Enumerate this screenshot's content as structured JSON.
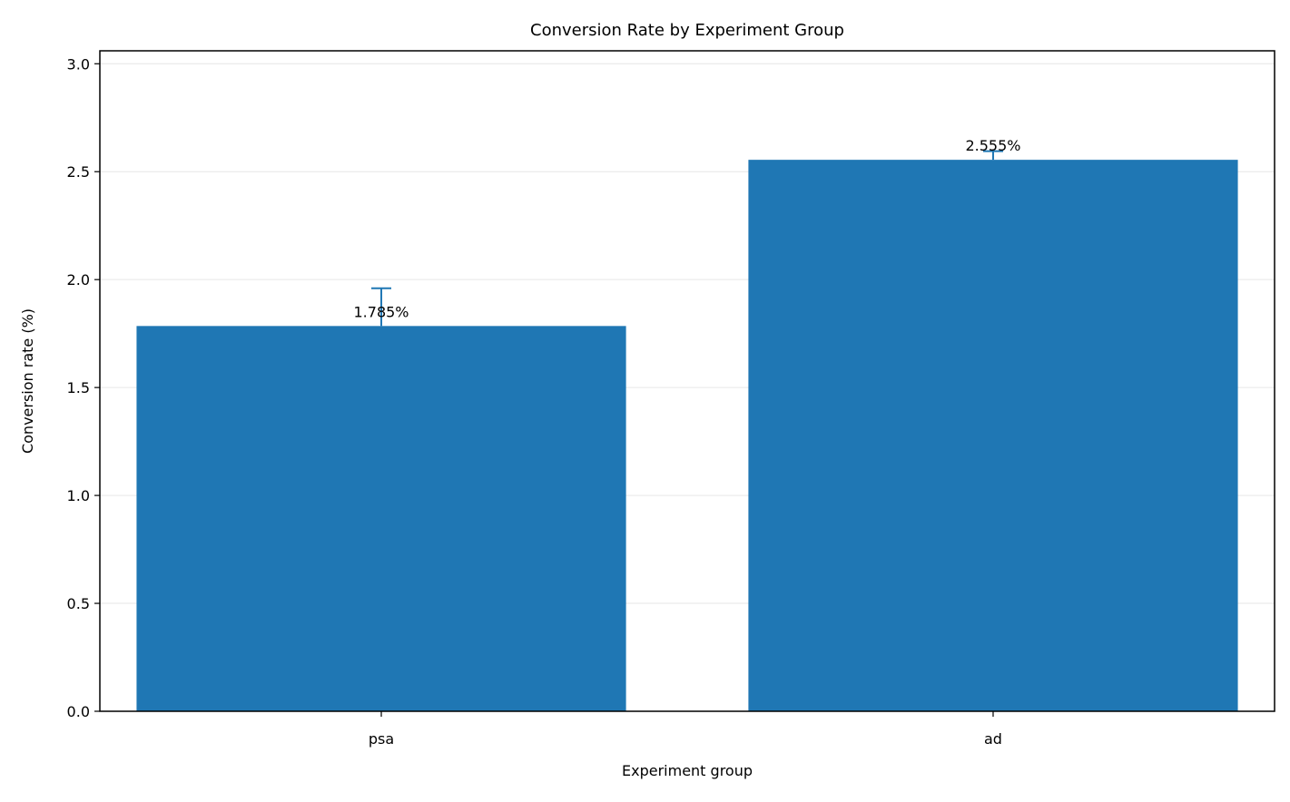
{
  "chart_data": {
    "type": "bar",
    "title": "Conversion Rate by Experiment Group",
    "xlabel": "Experiment group",
    "ylabel": "Conversion rate (%)",
    "categories": [
      "psa",
      "ad"
    ],
    "values": [
      1.785,
      2.555
    ],
    "error_upper": [
      1.96,
      2.595
    ],
    "error_lower": [
      1.785,
      2.555
    ],
    "data_labels": [
      "1.785%",
      "2.555%"
    ],
    "ylim": [
      0,
      3.06
    ],
    "yticks": [
      0.0,
      0.5,
      1.0,
      1.5,
      2.0,
      2.5,
      3.0
    ],
    "ytick_labels": [
      "0.0",
      "0.5",
      "1.0",
      "1.5",
      "2.0",
      "2.5",
      "3.0"
    ],
    "grid": "y",
    "legend": "none",
    "colors": {
      "bar": "#1f77b4",
      "errorbar": "#1f77b4",
      "grid": "#e6e6e6",
      "axis": "#000000"
    }
  }
}
